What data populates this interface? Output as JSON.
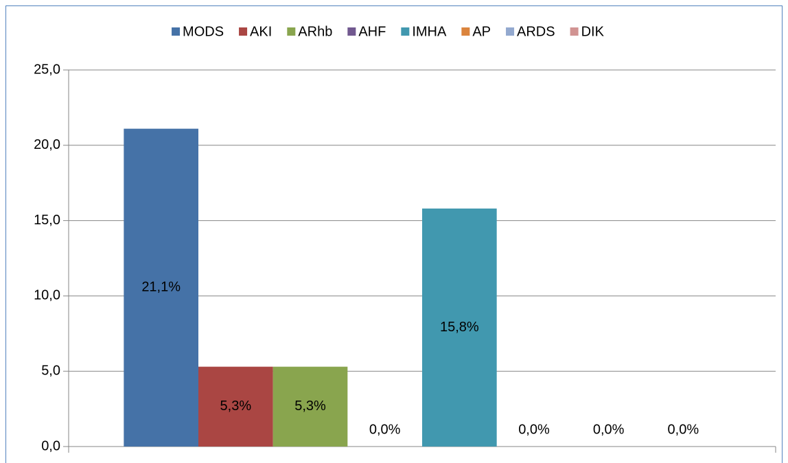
{
  "chart_data": {
    "type": "bar",
    "categories": [
      null
    ],
    "series": [
      {
        "name": "MODS",
        "color": "#4572a7",
        "values": [
          21.1
        ],
        "value_labels": [
          "21,1%"
        ]
      },
      {
        "name": "AKI",
        "color": "#aa4643",
        "values": [
          5.3
        ],
        "value_labels": [
          "5,3%"
        ]
      },
      {
        "name": "ARhb",
        "color": "#89a54e",
        "values": [
          5.3
        ],
        "value_labels": [
          "5,3%"
        ]
      },
      {
        "name": "AHF",
        "color": "#71588f",
        "values": [
          0
        ],
        "value_labels": [
          "0,0%"
        ]
      },
      {
        "name": "IMHA",
        "color": "#4198af",
        "values": [
          15.8
        ],
        "value_labels": [
          "15,8%"
        ]
      },
      {
        "name": "AP",
        "color": "#db843d",
        "values": [
          0
        ],
        "value_labels": [
          "0,0%"
        ]
      },
      {
        "name": "ARDS",
        "color": "#93a9cf",
        "values": [
          0
        ],
        "value_labels": [
          "0,0%"
        ]
      },
      {
        "name": "DIK",
        "color": "#d19392",
        "values": [
          0
        ],
        "value_labels": [
          "0,0%"
        ]
      }
    ],
    "ylim": [
      0,
      25
    ],
    "yticks": [
      {
        "value": 0,
        "label": "0,0"
      },
      {
        "value": 5,
        "label": "5,0"
      },
      {
        "value": 10,
        "label": "10,0"
      },
      {
        "value": 15,
        "label": "15,0"
      },
      {
        "value": 20,
        "label": "20,0"
      },
      {
        "value": 25,
        "label": "25,0"
      }
    ],
    "grid": true,
    "legend": "top"
  }
}
